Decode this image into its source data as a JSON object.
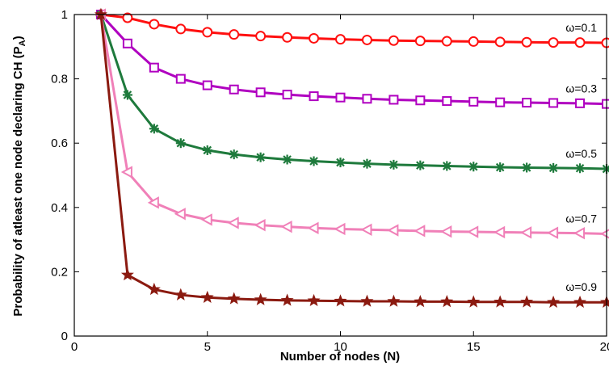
{
  "chart_data": {
    "type": "line",
    "title": "",
    "xlabel": "Number of nodes (N)",
    "ylabel_main": "Probability of atleast one node declaring CH (P",
    "ylabel_sub": "A",
    "ylabel_close": ")",
    "xlim": [
      0,
      20
    ],
    "ylim": [
      0,
      1
    ],
    "xticks": [
      "0",
      "5",
      "10",
      "15",
      "20"
    ],
    "yticks": [
      "0",
      "0.2",
      "0.4",
      "0.6",
      "0.8",
      "1"
    ],
    "grid": false,
    "x": [
      1,
      2,
      3,
      4,
      5,
      6,
      7,
      8,
      9,
      10,
      11,
      12,
      13,
      14,
      15,
      16,
      17,
      18,
      19,
      20
    ],
    "series": [
      {
        "name": "ω=0.1",
        "color": "#ff1010",
        "marker": "circle",
        "values": [
          1.0,
          0.99,
          0.97,
          0.955,
          0.945,
          0.938,
          0.933,
          0.929,
          0.926,
          0.923,
          0.921,
          0.919,
          0.918,
          0.917,
          0.916,
          0.915,
          0.914,
          0.913,
          0.913,
          0.912
        ]
      },
      {
        "name": "ω=0.3",
        "color": "#b000c0",
        "marker": "square",
        "values": [
          1.0,
          0.91,
          0.835,
          0.8,
          0.78,
          0.767,
          0.758,
          0.751,
          0.746,
          0.742,
          0.738,
          0.735,
          0.733,
          0.731,
          0.729,
          0.727,
          0.726,
          0.725,
          0.724,
          0.722
        ]
      },
      {
        "name": "ω=0.5",
        "color": "#1e7a3c",
        "marker": "asterisk",
        "values": [
          1.0,
          0.75,
          0.645,
          0.6,
          0.578,
          0.565,
          0.556,
          0.549,
          0.544,
          0.54,
          0.536,
          0.533,
          0.531,
          0.529,
          0.527,
          0.525,
          0.524,
          0.523,
          0.522,
          0.52
        ]
      },
      {
        "name": "ω=0.7",
        "color": "#f080b8",
        "marker": "triangle-left",
        "values": [
          1.0,
          0.51,
          0.415,
          0.38,
          0.362,
          0.352,
          0.345,
          0.34,
          0.336,
          0.333,
          0.331,
          0.329,
          0.327,
          0.325,
          0.324,
          0.323,
          0.322,
          0.321,
          0.32,
          0.318
        ]
      },
      {
        "name": "ω=0.9",
        "color": "#8b1a10",
        "marker": "star",
        "values": [
          1.0,
          0.19,
          0.145,
          0.128,
          0.12,
          0.116,
          0.113,
          0.111,
          0.11,
          0.109,
          0.108,
          0.108,
          0.107,
          0.107,
          0.106,
          0.106,
          0.106,
          0.105,
          0.105,
          0.105
        ]
      }
    ]
  }
}
